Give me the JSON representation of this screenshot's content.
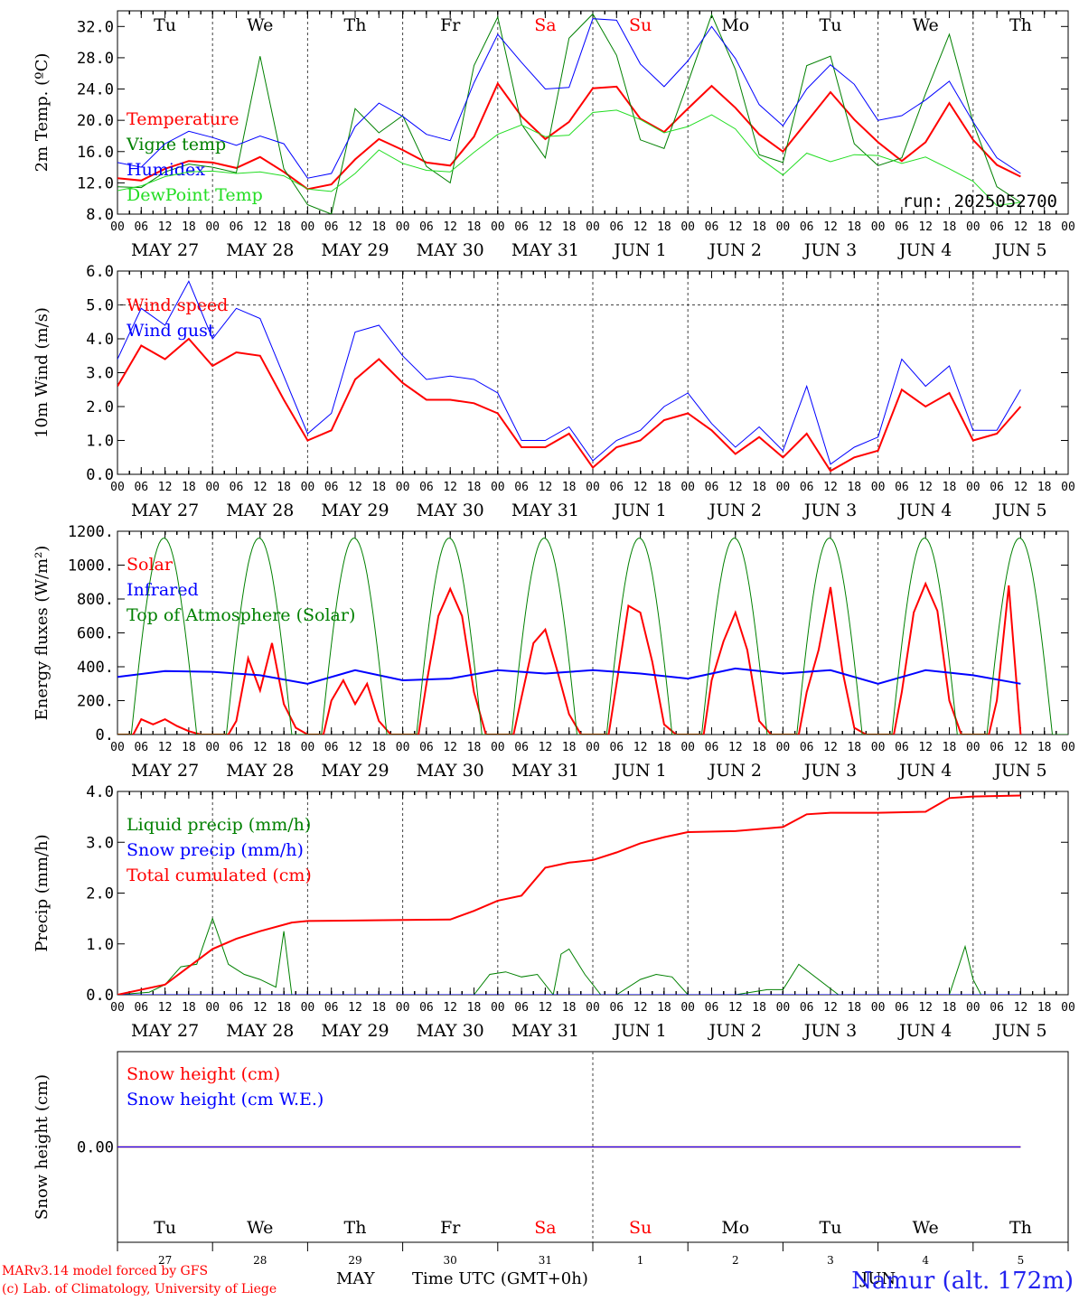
{
  "run_label": "run: 2025052700",
  "footer": {
    "model": "MARv3.14 model forced by GFS",
    "lab": "(c) Lab. of Climatology, University of Liege",
    "month_may": "MAY",
    "month_jun": "JUN",
    "time_axis": "Time UTC (GMT+0h)",
    "station": "Namur (alt. 172m)"
  },
  "colors": {
    "red": "#ff0000",
    "green": "#008000",
    "blue": "#0000ff",
    "lightgreen": "#22dd22",
    "grid": "#666666"
  },
  "chart_data": [
    {
      "type": "line",
      "ylabel": "2m Temp. (ºC)",
      "ylim": [
        8,
        34
      ],
      "yticks": [
        "8.0",
        "12.0",
        "16.0",
        "20.0",
        "24.0",
        "28.0",
        "32.0"
      ],
      "grid": "dashed day separators",
      "x_unit": "hours since 2025-05-27 00 UTC",
      "weekdays": [
        "Tu",
        "We",
        "Th",
        "Fr",
        "Sa",
        "Su",
        "Mo",
        "Tu",
        "We",
        "Th"
      ],
      "weekday_colors": [
        "#000000",
        "#000000",
        "#000000",
        "#000000",
        "#ff0000",
        "#ff0000",
        "#000000",
        "#000000",
        "#000000",
        "#000000"
      ],
      "dates": [
        "MAY 27",
        "MAY 28",
        "MAY 29",
        "MAY 30",
        "MAY 31",
        "JUN  1",
        "JUN  2",
        "JUN  3",
        "JUN  4",
        "JUN  5"
      ],
      "series": [
        {
          "name": "Temperature",
          "color": "#ff0000",
          "width": 2,
          "x": [
            0,
            6,
            12,
            18,
            24,
            30,
            36,
            42,
            48,
            54,
            60,
            66,
            72,
            78,
            84,
            90,
            96,
            102,
            108,
            114,
            120,
            126,
            132,
            138,
            144,
            150,
            156,
            162,
            168,
            174,
            180,
            186,
            192,
            198,
            204,
            210,
            216,
            222,
            228
          ],
          "y": [
            12.6,
            12.3,
            13.8,
            14.8,
            14.6,
            13.9,
            15.3,
            13.4,
            11.2,
            11.8,
            15.0,
            17.6,
            16.2,
            14.6,
            14.2,
            17.9,
            24.7,
            20.5,
            17.6,
            19.8,
            24.1,
            24.3,
            20.2,
            18.5,
            21.5,
            24.4,
            21.6,
            18.2,
            16.0,
            19.8,
            23.6,
            20.1,
            17.2,
            14.8,
            17.2,
            22.2,
            17.5,
            14.3,
            12.8
          ]
        },
        {
          "name": "Vigne temp",
          "color": "#008000",
          "width": 1,
          "x": [
            0,
            6,
            12,
            18,
            24,
            30,
            36,
            42,
            48,
            54,
            60,
            66,
            72,
            78,
            84,
            90,
            96,
            102,
            108,
            114,
            120,
            126,
            132,
            138,
            144,
            150,
            156,
            162,
            168,
            174,
            180,
            186,
            192,
            198,
            204,
            210,
            216,
            222,
            228
          ],
          "y": [
            11.5,
            11.4,
            13.4,
            14.4,
            14.0,
            13.3,
            28.2,
            13.8,
            9.2,
            8.0,
            21.5,
            18.4,
            20.6,
            14.1,
            12.0,
            27.0,
            33.2,
            19.5,
            15.2,
            30.5,
            33.6,
            28.3,
            17.5,
            16.4,
            24.8,
            33.5,
            26.5,
            15.6,
            14.6,
            27.0,
            28.2,
            17.0,
            14.2,
            15.2,
            23.4,
            31.0,
            19.7,
            11.5,
            9.5
          ]
        },
        {
          "name": "Humidex",
          "color": "#0000ff",
          "width": 1,
          "x": [
            0,
            6,
            12,
            18,
            24,
            30,
            36,
            42,
            48,
            54,
            60,
            66,
            72,
            78,
            84,
            90,
            96,
            102,
            108,
            114,
            120,
            126,
            132,
            138,
            144,
            150,
            156,
            162,
            168,
            174,
            180,
            186,
            192,
            198,
            204,
            210,
            216,
            222,
            228
          ],
          "y": [
            14.6,
            14.0,
            17.0,
            18.6,
            17.8,
            16.8,
            18.0,
            17.0,
            12.6,
            13.2,
            19.2,
            22.2,
            20.5,
            18.2,
            17.4,
            24.8,
            31.0,
            27.4,
            24.0,
            24.2,
            33.0,
            32.8,
            27.2,
            24.3,
            27.6,
            32.0,
            27.9,
            22.0,
            19.3,
            24.0,
            27.1,
            24.6,
            20.0,
            20.6,
            22.6,
            25.0,
            19.8,
            15.2,
            13.2
          ]
        },
        {
          "name": "DewPoint Temp",
          "color": "#22dd22",
          "width": 1,
          "x": [
            0,
            6,
            12,
            18,
            24,
            30,
            36,
            42,
            48,
            54,
            60,
            66,
            72,
            78,
            84,
            90,
            96,
            102,
            108,
            114,
            120,
            126,
            132,
            138,
            144,
            150,
            156,
            162,
            168,
            174,
            180,
            186,
            192,
            198,
            204,
            210,
            216,
            222,
            228
          ],
          "y": [
            11.0,
            11.6,
            12.8,
            13.4,
            13.5,
            13.2,
            13.4,
            12.9,
            11.2,
            10.9,
            13.2,
            16.2,
            14.5,
            13.6,
            13.4,
            15.9,
            18.2,
            19.4,
            17.9,
            18.1,
            21.0,
            21.3,
            20.1,
            18.4,
            19.2,
            20.7,
            18.9,
            15.2,
            13.0,
            15.8,
            14.7,
            15.6,
            15.5,
            14.5,
            15.3,
            13.8,
            12.2,
            9.1,
            9.5
          ]
        }
      ]
    },
    {
      "type": "line",
      "ylabel": "10m Wind (m/s)",
      "ylim": [
        0,
        6
      ],
      "yticks": [
        "0.0",
        "1.0",
        "2.0",
        "3.0",
        "4.0",
        "5.0",
        "6.0"
      ],
      "reference_line": 5.0,
      "series": [
        {
          "name": "Wind speed",
          "color": "#ff0000",
          "width": 2,
          "x": [
            0,
            6,
            12,
            18,
            24,
            30,
            36,
            42,
            48,
            54,
            60,
            66,
            72,
            78,
            84,
            90,
            96,
            102,
            108,
            114,
            120,
            126,
            132,
            138,
            144,
            150,
            156,
            162,
            168,
            174,
            180,
            186,
            192,
            198,
            204,
            210,
            216,
            222,
            228
          ],
          "y": [
            2.6,
            3.8,
            3.4,
            4.0,
            3.2,
            3.6,
            3.5,
            2.2,
            1.0,
            1.3,
            2.8,
            3.4,
            2.7,
            2.2,
            2.2,
            2.1,
            1.8,
            0.8,
            0.8,
            1.2,
            0.2,
            0.8,
            1.0,
            1.6,
            1.8,
            1.3,
            0.6,
            1.1,
            0.5,
            1.2,
            0.1,
            0.5,
            0.7,
            2.5,
            2.0,
            2.4,
            1.0,
            1.2,
            2.0
          ]
        },
        {
          "name": "Wind gust",
          "color": "#0000ff",
          "width": 1,
          "x": [
            0,
            6,
            12,
            18,
            24,
            30,
            36,
            42,
            48,
            54,
            60,
            66,
            72,
            78,
            84,
            90,
            96,
            102,
            108,
            114,
            120,
            126,
            132,
            138,
            144,
            150,
            156,
            162,
            168,
            174,
            180,
            186,
            192,
            198,
            204,
            210,
            216,
            222,
            228
          ],
          "y": [
            3.4,
            4.9,
            4.4,
            5.7,
            4.0,
            4.9,
            4.6,
            2.9,
            1.2,
            1.8,
            4.2,
            4.4,
            3.5,
            2.8,
            2.9,
            2.8,
            2.4,
            1.0,
            1.0,
            1.4,
            0.4,
            1.0,
            1.3,
            2.0,
            2.4,
            1.5,
            0.8,
            1.4,
            0.7,
            2.6,
            0.3,
            0.8,
            1.1,
            3.4,
            2.6,
            3.2,
            1.3,
            1.3,
            2.5
          ]
        }
      ]
    },
    {
      "type": "line",
      "ylabel": "Energy fluxes (W/m²)",
      "ylim": [
        0,
        1200
      ],
      "yticks": [
        "0.",
        "200.",
        "400.",
        "600.",
        "800.",
        "1000.",
        "1200."
      ],
      "series": [
        {
          "name": "Solar",
          "color": "#ff0000",
          "width": 2,
          "x": [
            0,
            4,
            6,
            9,
            12,
            15,
            18,
            21,
            24,
            28,
            30,
            33,
            36,
            39,
            42,
            45,
            48,
            52,
            54,
            57,
            60,
            63,
            66,
            69,
            72,
            76,
            78,
            81,
            84,
            87,
            90,
            93,
            96,
            100,
            102,
            105,
            108,
            111,
            114,
            117,
            120,
            124,
            126,
            129,
            132,
            135,
            138,
            141,
            144,
            148,
            150,
            153,
            156,
            159,
            162,
            165,
            168,
            172,
            174,
            177,
            180,
            183,
            186,
            189,
            192,
            196,
            198,
            201,
            204,
            207,
            210,
            213,
            216,
            220,
            222,
            225,
            228
          ],
          "y": [
            0,
            0,
            90,
            60,
            90,
            50,
            20,
            0,
            0,
            0,
            80,
            450,
            260,
            540,
            180,
            40,
            0,
            0,
            200,
            320,
            180,
            300,
            80,
            0,
            0,
            0,
            300,
            700,
            860,
            700,
            250,
            0,
            0,
            0,
            220,
            540,
            620,
            380,
            120,
            0,
            0,
            0,
            300,
            760,
            720,
            430,
            60,
            0,
            0,
            0,
            320,
            550,
            720,
            500,
            80,
            0,
            0,
            0,
            250,
            500,
            870,
            380,
            40,
            0,
            0,
            0,
            250,
            720,
            890,
            730,
            200,
            0,
            0,
            0,
            200,
            880,
            0
          ]
        },
        {
          "name": "Infrared",
          "color": "#0000ff",
          "width": 2,
          "x": [
            0,
            12,
            24,
            36,
            48,
            60,
            72,
            84,
            96,
            108,
            120,
            132,
            144,
            156,
            168,
            180,
            192,
            204,
            216,
            228
          ],
          "y": [
            340,
            375,
            370,
            350,
            300,
            380,
            320,
            330,
            380,
            360,
            380,
            360,
            330,
            390,
            360,
            380,
            300,
            380,
            350,
            300
          ]
        },
        {
          "name": "Top of Atmosphere (Solar)",
          "color": "#008000",
          "width": 1,
          "type": "daily_bell",
          "sunrise_h": 3.5,
          "sunset_h": 20.0,
          "peak": 1160
        }
      ]
    },
    {
      "type": "line",
      "ylabel": "Precip (mm/h)",
      "ylim": [
        0,
        4
      ],
      "yticks": [
        "0.0",
        "1.0",
        "2.0",
        "3.0",
        "4.0"
      ],
      "series": [
        {
          "name": "Liquid precip (mm/h)",
          "color": "#008000",
          "width": 1,
          "x": [
            0,
            8,
            12,
            16,
            20,
            24,
            28,
            32,
            36,
            40,
            42,
            44,
            48,
            90,
            94,
            98,
            102,
            106,
            110,
            112,
            114,
            118,
            122,
            126,
            132,
            136,
            140,
            144,
            156,
            160,
            164,
            168,
            172,
            182,
            186,
            190,
            192,
            210,
            214,
            216,
            218,
            228
          ],
          "y": [
            0,
            0.05,
            0.2,
            0.55,
            0.6,
            1.5,
            0.6,
            0.4,
            0.3,
            0.15,
            1.25,
            0,
            0,
            0,
            0.4,
            0.45,
            0.35,
            0.4,
            0,
            0.8,
            0.9,
            0.4,
            0,
            0,
            0.3,
            0.4,
            0.35,
            0,
            0,
            0.05,
            0.1,
            0.1,
            0.6,
            0,
            0,
            0,
            0,
            0,
            0.95,
            0.3,
            0,
            0
          ]
        },
        {
          "name": "Snow precip (mm/h)",
          "color": "#0000ff",
          "width": 1,
          "x": [
            0,
            228
          ],
          "y": [
            0,
            0
          ]
        },
        {
          "name": "Total cumulated (cm)",
          "color": "#ff0000",
          "width": 2,
          "x": [
            0,
            12,
            24,
            30,
            36,
            44,
            48,
            72,
            84,
            90,
            96,
            102,
            108,
            114,
            120,
            126,
            132,
            138,
            144,
            156,
            168,
            174,
            180,
            192,
            204,
            210,
            216,
            228
          ],
          "y": [
            0,
            0.2,
            0.9,
            1.1,
            1.25,
            1.42,
            1.45,
            1.47,
            1.48,
            1.65,
            1.85,
            1.95,
            2.5,
            2.6,
            2.65,
            2.8,
            2.98,
            3.1,
            3.2,
            3.22,
            3.3,
            3.55,
            3.58,
            3.58,
            3.6,
            3.87,
            3.9,
            3.92
          ]
        }
      ]
    },
    {
      "type": "line",
      "ylabel": "Snow height (cm)",
      "yticks": [
        "0.00"
      ],
      "series": [
        {
          "name": "Snow height (cm)",
          "color": "#ff0000",
          "width": 1.5,
          "x": [
            0,
            228
          ],
          "y": [
            0,
            0
          ]
        },
        {
          "name": "Snow height (cm W.E.)",
          "color": "#0000ff",
          "width": 1,
          "x": [
            0,
            228
          ],
          "y": [
            0,
            0
          ]
        }
      ],
      "weekdays": [
        "Tu",
        "We",
        "Th",
        "Fr",
        "Sa",
        "Su",
        "Mo",
        "Tu",
        "We",
        "Th"
      ],
      "day_numbers": [
        "27",
        "28",
        "29",
        "30",
        "31",
        "1",
        "2",
        "3",
        "4",
        "5"
      ]
    }
  ]
}
